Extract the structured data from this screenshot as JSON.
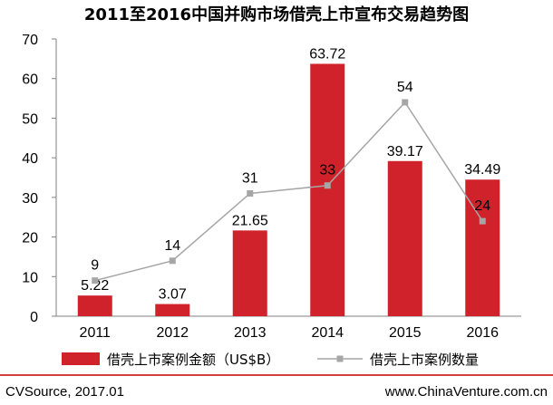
{
  "chart_data": {
    "type": "bar+line",
    "title": "2011至2016中国并购市场借壳上市宣布交易趋势图",
    "categories": [
      "2011",
      "2012",
      "2013",
      "2014",
      "2015",
      "2016"
    ],
    "ylim": [
      0,
      70
    ],
    "yticks": [
      0,
      10,
      20,
      30,
      40,
      50,
      60,
      70
    ],
    "grid": false,
    "legend_position": "bottom",
    "series": [
      {
        "name": "借壳上市案例金额（US$B）",
        "type": "bar",
        "color": "#d0222b",
        "values": [
          5.22,
          3.07,
          21.65,
          63.72,
          39.17,
          34.49
        ],
        "labels": [
          "5.22",
          "3.07",
          "21.65",
          "63.72",
          "39.17",
          "34.49"
        ]
      },
      {
        "name": "借壳上市案例数量",
        "type": "line",
        "color": "#a6a6a6",
        "values": [
          9,
          14,
          31,
          33,
          54,
          24
        ],
        "labels": [
          "9",
          "14",
          "31",
          "33",
          "54",
          "24"
        ]
      }
    ]
  },
  "footer": {
    "source": "CVSource, 2017.01",
    "website": "www.ChinaVenture.com.cn",
    "rule_color": "#c00000"
  }
}
